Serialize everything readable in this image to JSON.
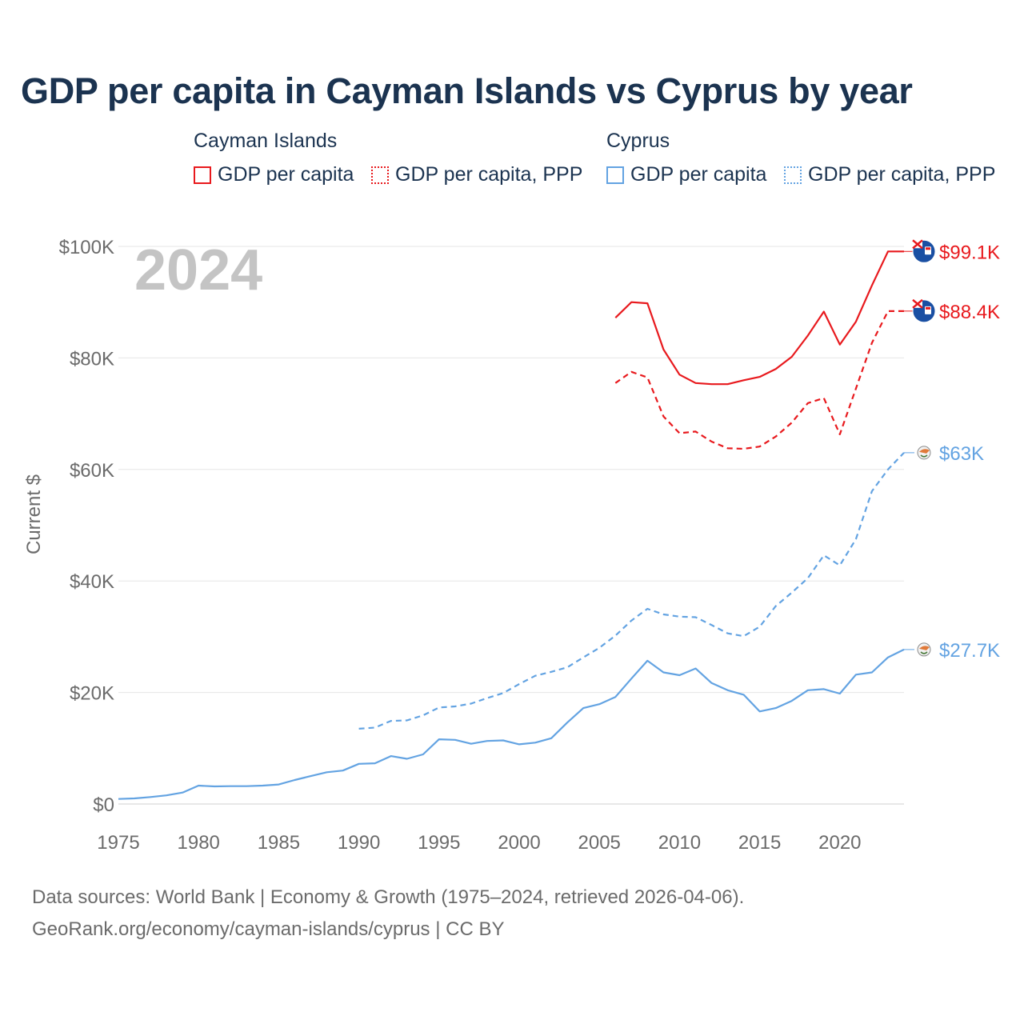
{
  "title": "GDP per capita in Cayman Islands vs Cyprus by year",
  "legend": {
    "groups": [
      {
        "country": "Cayman Islands",
        "items": [
          "GDP per capita",
          "GDP per capita, PPP"
        ],
        "color": "#e8191d"
      },
      {
        "country": "Cyprus",
        "items": [
          "GDP per capita",
          "GDP per capita, PPP"
        ],
        "color": "#63a3e2"
      }
    ]
  },
  "year_label": "2024",
  "footer": {
    "line1": "Data sources: World Bank | Economy & Growth (1975–2024, retrieved 2026-04-06).",
    "line2": "GeoRank.org/economy/cayman-islands/cyprus | CC BY"
  },
  "chart_data": {
    "type": "line",
    "title": "GDP per capita in Cayman Islands vs Cyprus by year",
    "xlabel": "",
    "ylabel": "Current $",
    "xlim": [
      1975,
      2024
    ],
    "ylim": [
      0,
      100000
    ],
    "x_ticks": [
      "1975",
      "1980",
      "1985",
      "1990",
      "1995",
      "2000",
      "2005",
      "2010",
      "2015",
      "2020"
    ],
    "y_ticks": [
      {
        "value": 0,
        "label": "$0"
      },
      {
        "value": 20000,
        "label": "$20K"
      },
      {
        "value": 40000,
        "label": "$40K"
      },
      {
        "value": 60000,
        "label": "$60K"
      },
      {
        "value": 80000,
        "label": "$80K"
      },
      {
        "value": 100000,
        "label": "$100K"
      }
    ],
    "grid": true,
    "series": [
      {
        "name": "Cayman Islands GDP per capita",
        "color": "#e8191d",
        "dash": "solid",
        "end_label": "$99.1K",
        "icon": "cayman-flag-icon",
        "x": [
          2006,
          2007,
          2008,
          2009,
          2010,
          2011,
          2012,
          2013,
          2014,
          2015,
          2016,
          2017,
          2018,
          2019,
          2020,
          2021,
          2022,
          2023,
          2024
        ],
        "values": [
          87200,
          90000,
          89800,
          81500,
          77000,
          75500,
          75300,
          75300,
          76000,
          76600,
          78000,
          80200,
          84000,
          88300,
          82400,
          86500,
          93000,
          99100,
          99100
        ]
      },
      {
        "name": "Cayman Islands GDP per capita, PPP",
        "color": "#e8191d",
        "dash": "dashed",
        "end_label": "$88.4K",
        "icon": "cayman-flag-icon",
        "x": [
          2006,
          2007,
          2008,
          2009,
          2010,
          2011,
          2012,
          2013,
          2014,
          2015,
          2016,
          2017,
          2018,
          2019,
          2020,
          2021,
          2022,
          2023,
          2024
        ],
        "values": [
          75500,
          77500,
          76500,
          69500,
          66500,
          66800,
          65000,
          63800,
          63700,
          64100,
          65900,
          68400,
          71900,
          72800,
          66300,
          74500,
          82700,
          88400,
          88400
        ]
      },
      {
        "name": "Cyprus GDP per capita",
        "color": "#63a3e2",
        "dash": "solid",
        "end_label": "$27.7K",
        "icon": "cyprus-flag-icon",
        "x": [
          1975,
          1976,
          1977,
          1978,
          1979,
          1980,
          1981,
          1982,
          1983,
          1984,
          1985,
          1986,
          1987,
          1988,
          1989,
          1990,
          1991,
          1992,
          1993,
          1994,
          1995,
          1996,
          1997,
          1998,
          1999,
          2000,
          2001,
          2002,
          2003,
          2004,
          2005,
          2006,
          2007,
          2008,
          2009,
          2010,
          2011,
          2012,
          2013,
          2014,
          2015,
          2016,
          2017,
          2018,
          2019,
          2020,
          2021,
          2022,
          2023,
          2024
        ],
        "values": [
          900,
          1000,
          1250,
          1550,
          2050,
          3300,
          3150,
          3200,
          3200,
          3300,
          3500,
          4300,
          5000,
          5700,
          6000,
          7200,
          7300,
          8600,
          8100,
          8900,
          11600,
          11500,
          10800,
          11300,
          11400,
          10700,
          11000,
          11800,
          14600,
          17200,
          17900,
          19200,
          22500,
          25700,
          23600,
          23100,
          24300,
          21700,
          20400,
          19600,
          16600,
          17200,
          18500,
          20400,
          20600,
          19800,
          23200,
          23600,
          26300,
          27700
        ]
      },
      {
        "name": "Cyprus GDP per capita, PPP",
        "color": "#63a3e2",
        "dash": "dashed",
        "end_label": "$63K",
        "icon": "cyprus-flag-icon",
        "x": [
          1990,
          1991,
          1992,
          1993,
          1994,
          1995,
          1996,
          1997,
          1998,
          1999,
          2000,
          2001,
          2002,
          2003,
          2004,
          2005,
          2006,
          2007,
          2008,
          2009,
          2010,
          2011,
          2012,
          2013,
          2014,
          2015,
          2016,
          2017,
          2018,
          2019,
          2020,
          2021,
          2022,
          2023,
          2024
        ],
        "values": [
          13500,
          13700,
          14900,
          15000,
          15900,
          17300,
          17500,
          18000,
          19000,
          19900,
          21500,
          23000,
          23700,
          24500,
          26300,
          28000,
          30200,
          32900,
          35000,
          34000,
          33600,
          33500,
          32100,
          30600,
          30100,
          31800,
          35500,
          37900,
          40500,
          44600,
          42800,
          47500,
          56100,
          60000,
          63000
        ]
      }
    ]
  }
}
